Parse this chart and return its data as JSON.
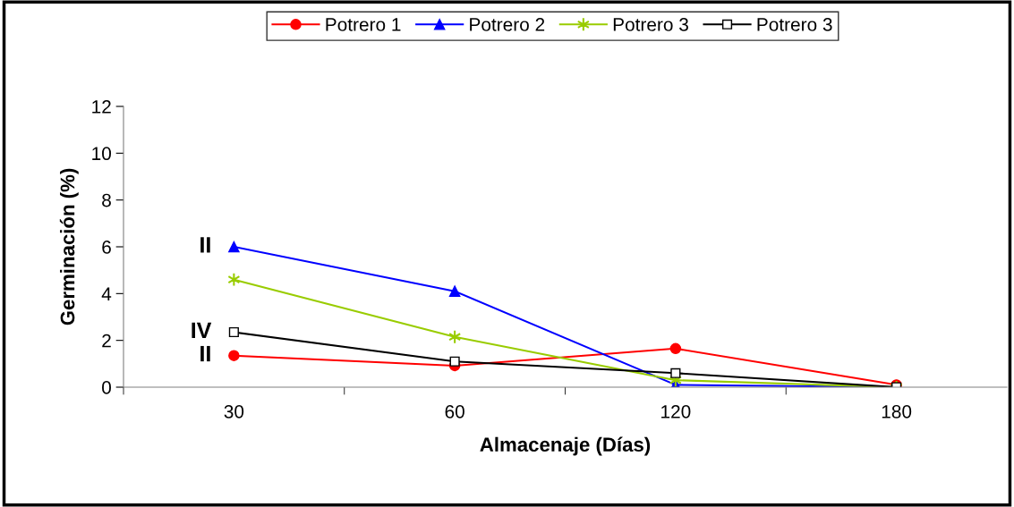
{
  "chart_data": {
    "type": "line",
    "xlabel": "Almacenaje (Días)",
    "ylabel": "Germinación (%)",
    "categories": [
      "30",
      "60",
      "120",
      "180"
    ],
    "series": [
      {
        "name": "Potrero 1",
        "color": "#ff0000",
        "marker": "circle",
        "values": [
          1.35,
          0.92,
          1.65,
          0.1
        ]
      },
      {
        "name": "Potrero 2",
        "color": "#0000ff",
        "marker": "triangle",
        "values": [
          6.0,
          4.1,
          0.1,
          0.0
        ]
      },
      {
        "name": "Potrero 3",
        "color": "#99cc00",
        "marker": "cross",
        "values": [
          4.6,
          2.15,
          0.3,
          0.0
        ]
      },
      {
        "name": "Potrero 3",
        "color": "#000000",
        "marker": "square",
        "values": [
          2.35,
          1.1,
          0.6,
          0.0
        ]
      }
    ],
    "ylim": [
      0,
      12
    ],
    "yticks": [
      0,
      2,
      4,
      6,
      8,
      10,
      12
    ],
    "grid": false,
    "legend": "top",
    "line_style": "solid",
    "annotations": [
      {
        "text": "II",
        "x": "30",
        "y": 6.0
      },
      {
        "text": "IV",
        "x": "30",
        "y": 2.35
      },
      {
        "text": "II",
        "x": "30",
        "y": 1.35
      }
    ]
  }
}
